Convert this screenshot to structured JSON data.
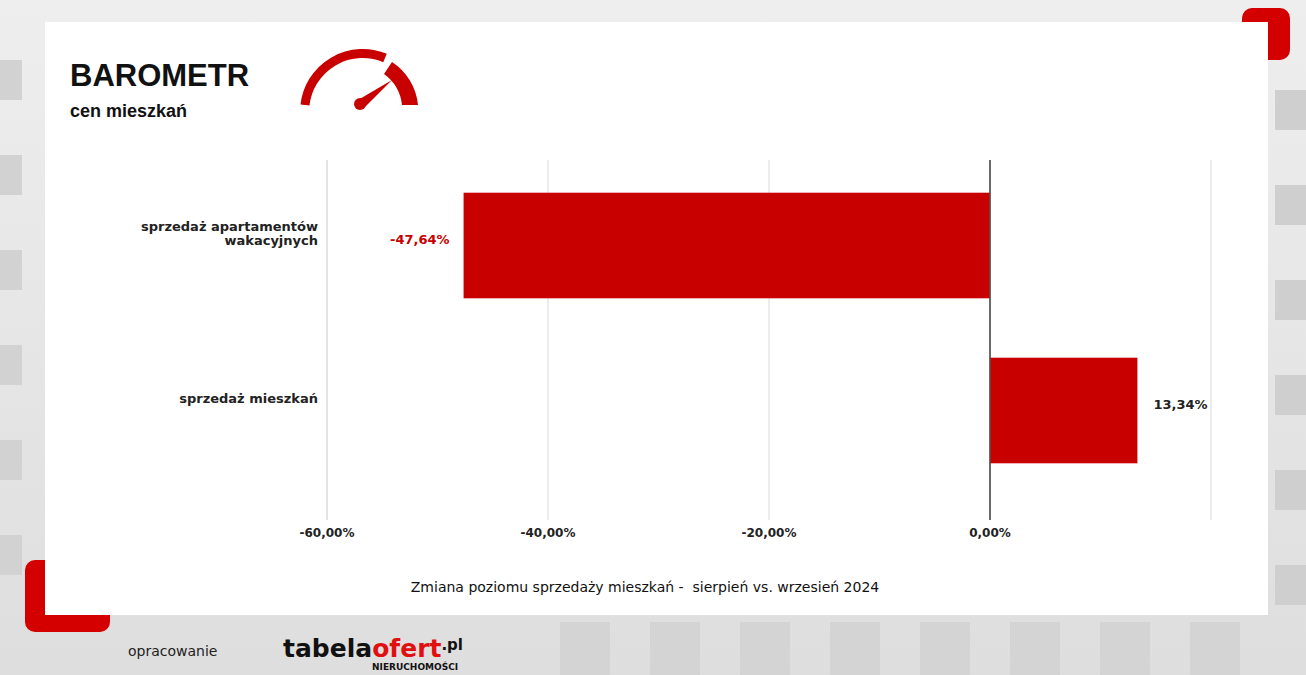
{
  "chart_data": {
    "type": "bar",
    "orientation": "horizontal",
    "title": "BAROMETR",
    "subtitle": "cen mieszkań",
    "x_label": "Zmiana poziomu sprzedaży mieszkań -  sierpień vs. wrzesień 2024",
    "categories": [
      "sprzedaż apartamentów wakacyjnych",
      "sprzedaż mieszkań"
    ],
    "values": [
      -47.64,
      13.34
    ],
    "value_labels": [
      "-47,64%",
      "13,34%"
    ],
    "data_labels": true,
    "color": "#c80000",
    "xlim": [
      -60,
      20
    ],
    "xticks": [
      {
        "value": -60,
        "label": "-60,00%"
      },
      {
        "value": -40,
        "label": "-40,00%"
      },
      {
        "value": -20,
        "label": "-20,00%"
      },
      {
        "value": 0,
        "label": "0,00%"
      }
    ],
    "grid": true,
    "source": "opracowanie",
    "logo_parts": [
      "tabela",
      "ofert",
      ".pl"
    ],
    "logo_caption": "NIERUCHOMOŚCI"
  }
}
